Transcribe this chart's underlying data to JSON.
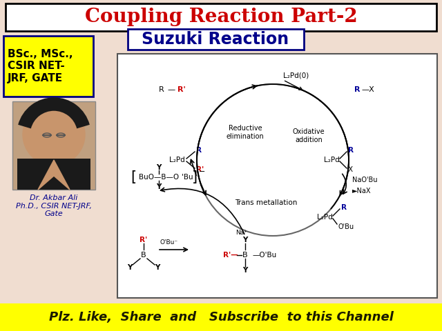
{
  "bg_color": "#f0ddd0",
  "title": "Coupling Reaction Part-2",
  "title_color": "#cc0000",
  "title_fontsize": 20,
  "title_bg": "#ffffff",
  "subtitle": "Suzuki Reaction",
  "subtitle_color": "#00008b",
  "subtitle_fontsize": 17,
  "subtitle_bg": "#ffffff",
  "badge_bg": "#ffff00",
  "badge_text": "BSc., MSc.,\nCSIR NET-\nJRF, GATE",
  "badge_color": "#000000",
  "badge_fontsize": 11,
  "footer_text": "Plz. Like,  Share  and   Subscribe  to this Channel",
  "footer_color": "#1a1a00",
  "footer_bg": "#ffff00",
  "footer_fontsize": 13,
  "dr_text": "Dr. Akbar Ali\nPh.D., CSIR NET-JRF,\nGate",
  "dr_color": "#00008b",
  "dr_fontsize": 8,
  "diagram_bg": "#ffffff",
  "blue_color": "#000099",
  "red_color": "#cc0000",
  "black_color": "#000000",
  "gray_color": "#555555"
}
